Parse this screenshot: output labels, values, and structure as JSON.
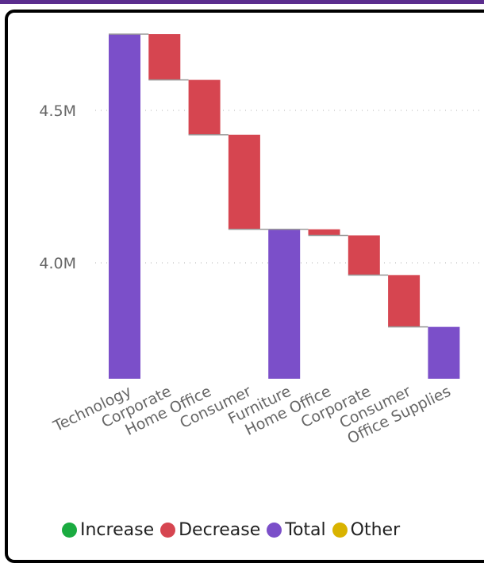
{
  "chart_data": {
    "type": "waterfall",
    "ylim": [
      3.62,
      4.76
    ],
    "y_ticks": [
      {
        "value": 4.5,
        "label": "4.5M"
      },
      {
        "value": 4.0,
        "label": "4.0M"
      }
    ],
    "grid": "horizontal dotted",
    "categories": [
      "Technology",
      "Corporate",
      "Home Office",
      "Consumer",
      "Furniture",
      "Home Office",
      "Corporate",
      "Consumer",
      "Office Supplies"
    ],
    "bars": [
      {
        "label": "Technology",
        "kind": "total",
        "start": 3.62,
        "end": 4.75
      },
      {
        "label": "Corporate",
        "kind": "decrease",
        "start": 4.75,
        "end": 4.6
      },
      {
        "label": "Home Office",
        "kind": "decrease",
        "start": 4.6,
        "end": 4.42
      },
      {
        "label": "Consumer",
        "kind": "decrease",
        "start": 4.42,
        "end": 4.11
      },
      {
        "label": "Furniture",
        "kind": "total",
        "start": 3.62,
        "end": 4.11
      },
      {
        "label": "Home Office",
        "kind": "decrease",
        "start": 4.11,
        "end": 4.09
      },
      {
        "label": "Corporate",
        "kind": "decrease",
        "start": 4.09,
        "end": 3.96
      },
      {
        "label": "Consumer",
        "kind": "decrease",
        "start": 3.96,
        "end": 3.79
      },
      {
        "label": "Office Supplies",
        "kind": "total",
        "start": 3.62,
        "end": 3.79
      }
    ],
    "legend": {
      "placement": "bottom",
      "items": [
        {
          "label": "Increase",
          "color": "#1aab40"
        },
        {
          "label": "Decrease",
          "color": "#d64550"
        },
        {
          "label": "Total",
          "color": "#7b4fc9"
        },
        {
          "label": "Other",
          "color": "#d9b300"
        }
      ]
    },
    "colors": {
      "increase": "#1aab40",
      "decrease": "#d64550",
      "total": "#7b4fc9",
      "other": "#d9b300"
    }
  }
}
